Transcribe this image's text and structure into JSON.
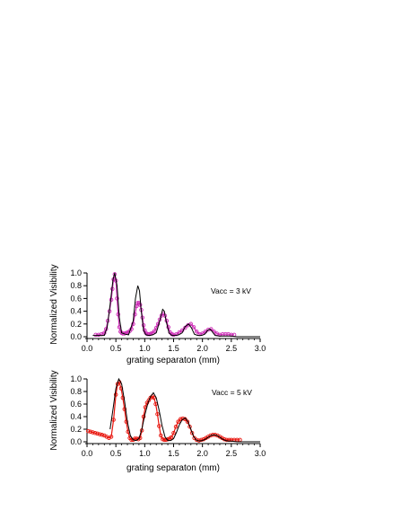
{
  "chart_data": [
    {
      "type": "line",
      "annotation": "Vacc = 3 kV",
      "xlabel": "grating separaton (mm)",
      "ylabel": "Normalized  Visibility",
      "xlim": [
        0.0,
        3.0
      ],
      "ylim": [
        0.0,
        1.0
      ],
      "xticks": [
        "0.0",
        "0.5",
        "1.0",
        "1.5",
        "2.0",
        "2.5",
        "3.0"
      ],
      "yticks": [
        "0.0",
        "0.2",
        "0.4",
        "0.6",
        "0.8",
        "1.0"
      ],
      "grid": false,
      "series": [
        {
          "role": "theory",
          "style": "line",
          "color": "#000000",
          "x": [
            0.1,
            0.3,
            0.35,
            0.4,
            0.45,
            0.48,
            0.52,
            0.56,
            0.6,
            0.66,
            0.72,
            0.8,
            0.84,
            0.88,
            0.91,
            0.94,
            0.98,
            1.02,
            1.08,
            1.14,
            1.2,
            1.26,
            1.31,
            1.34,
            1.37,
            1.42,
            1.47,
            1.53,
            1.59,
            1.65,
            1.7,
            1.76,
            1.81,
            1.86,
            1.92,
            1.98,
            2.04,
            2.09,
            2.13,
            2.17,
            2.22,
            2.3,
            2.4,
            2.5,
            2.6,
            3.0
          ],
          "y": [
            0.02,
            0.02,
            0.15,
            0.5,
            0.9,
            1.0,
            0.8,
            0.3,
            0.06,
            0.04,
            0.03,
            0.25,
            0.6,
            0.8,
            0.72,
            0.4,
            0.1,
            0.03,
            0.02,
            0.03,
            0.06,
            0.25,
            0.43,
            0.4,
            0.25,
            0.06,
            0.02,
            0.02,
            0.03,
            0.06,
            0.16,
            0.2,
            0.14,
            0.04,
            0.02,
            0.02,
            0.04,
            0.1,
            0.12,
            0.08,
            0.02,
            0.01,
            0.01,
            0.01,
            0.0,
            0.0
          ]
        },
        {
          "role": "experiment",
          "style": "markers-line",
          "color": "#cc2ab5",
          "x": [
            0.15,
            0.2,
            0.25,
            0.3,
            0.33,
            0.36,
            0.39,
            0.42,
            0.44,
            0.46,
            0.48,
            0.5,
            0.52,
            0.54,
            0.56,
            0.58,
            0.6,
            0.62,
            0.65,
            0.68,
            0.71,
            0.74,
            0.77,
            0.8,
            0.83,
            0.86,
            0.88,
            0.9,
            0.92,
            0.94,
            0.96,
            0.98,
            1.0,
            1.02,
            1.05,
            1.08,
            1.11,
            1.14,
            1.17,
            1.2,
            1.23,
            1.26,
            1.29,
            1.32,
            1.35,
            1.38,
            1.41,
            1.44,
            1.47,
            1.5,
            1.55,
            1.6,
            1.65,
            1.7,
            1.75,
            1.8,
            1.85,
            1.9,
            1.95,
            2.0,
            2.05,
            2.1,
            2.15,
            2.2,
            2.25,
            2.3,
            2.35,
            2.4,
            2.45,
            2.5,
            2.55
          ],
          "y": [
            0.03,
            0.03,
            0.04,
            0.06,
            0.12,
            0.25,
            0.4,
            0.58,
            0.75,
            0.9,
            0.98,
            0.88,
            0.6,
            0.35,
            0.15,
            0.08,
            0.06,
            0.05,
            0.05,
            0.06,
            0.07,
            0.09,
            0.12,
            0.2,
            0.35,
            0.48,
            0.53,
            0.53,
            0.5,
            0.42,
            0.3,
            0.18,
            0.1,
            0.06,
            0.04,
            0.04,
            0.05,
            0.06,
            0.09,
            0.14,
            0.2,
            0.27,
            0.33,
            0.36,
            0.33,
            0.25,
            0.15,
            0.07,
            0.04,
            0.03,
            0.04,
            0.07,
            0.1,
            0.14,
            0.18,
            0.2,
            0.15,
            0.08,
            0.04,
            0.05,
            0.08,
            0.11,
            0.12,
            0.08,
            0.05,
            0.03,
            0.04,
            0.04,
            0.04,
            0.03,
            0.03
          ]
        }
      ]
    },
    {
      "type": "line",
      "annotation": "Vacc = 5 kV",
      "xlabel": "grating separaton (mm)",
      "ylabel": "Normalized  Visibility",
      "xlim": [
        0.0,
        3.0
      ],
      "ylim": [
        0.0,
        1.0
      ],
      "xticks": [
        "0.0",
        "0.5",
        "1.0",
        "1.5",
        "2.0",
        "2.5",
        "3.0"
      ],
      "yticks": [
        "0.0",
        "0.2",
        "0.4",
        "0.6",
        "0.8",
        "1.0"
      ],
      "grid": false,
      "series": [
        {
          "role": "theory",
          "style": "line",
          "color": "#000000",
          "x": [
            0.4,
            0.45,
            0.5,
            0.55,
            0.6,
            0.65,
            0.7,
            0.75,
            0.8,
            0.85,
            0.9,
            0.95,
            1.0,
            1.05,
            1.1,
            1.15,
            1.2,
            1.25,
            1.3,
            1.35,
            1.4,
            1.45,
            1.5,
            1.55,
            1.6,
            1.65,
            1.7,
            1.75,
            1.8,
            1.85,
            1.9,
            1.95,
            2.0,
            2.05,
            2.1,
            2.15,
            2.2,
            2.25,
            2.3,
            2.35,
            2.4,
            2.45,
            2.5,
            2.6,
            2.8,
            3.0
          ],
          "y": [
            0.2,
            0.52,
            0.85,
            1.0,
            0.92,
            0.65,
            0.32,
            0.1,
            0.03,
            0.02,
            0.05,
            0.2,
            0.42,
            0.6,
            0.72,
            0.78,
            0.7,
            0.5,
            0.26,
            0.08,
            0.02,
            0.02,
            0.05,
            0.15,
            0.27,
            0.35,
            0.38,
            0.32,
            0.2,
            0.08,
            0.02,
            0.01,
            0.02,
            0.04,
            0.07,
            0.1,
            0.11,
            0.1,
            0.07,
            0.04,
            0.02,
            0.01,
            0.01,
            0.0,
            0.0,
            0.0
          ]
        },
        {
          "role": "experiment",
          "style": "markers-line",
          "color": "#e8140c",
          "x": [
            0.02,
            0.06,
            0.1,
            0.14,
            0.18,
            0.22,
            0.26,
            0.3,
            0.34,
            0.38,
            0.42,
            0.46,
            0.5,
            0.53,
            0.56,
            0.59,
            0.62,
            0.65,
            0.68,
            0.71,
            0.74,
            0.77,
            0.8,
            0.83,
            0.86,
            0.89,
            0.92,
            0.95,
            0.98,
            1.01,
            1.04,
            1.07,
            1.1,
            1.13,
            1.16,
            1.19,
            1.22,
            1.25,
            1.28,
            1.31,
            1.34,
            1.37,
            1.4,
            1.43,
            1.46,
            1.5,
            1.54,
            1.58,
            1.62,
            1.66,
            1.7,
            1.74,
            1.78,
            1.82,
            1.86,
            1.9,
            1.94,
            1.98,
            2.02,
            2.06,
            2.1,
            2.14,
            2.18,
            2.22,
            2.26,
            2.3,
            2.34,
            2.38,
            2.42,
            2.46,
            2.5,
            2.55,
            2.6,
            2.65
          ],
          "y": [
            0.17,
            0.16,
            0.15,
            0.14,
            0.13,
            0.12,
            0.11,
            0.1,
            0.08,
            0.06,
            0.08,
            0.35,
            0.75,
            0.92,
            0.95,
            0.85,
            0.7,
            0.52,
            0.32,
            0.16,
            0.06,
            0.03,
            0.03,
            0.05,
            0.05,
            0.04,
            0.06,
            0.18,
            0.4,
            0.55,
            0.62,
            0.66,
            0.7,
            0.72,
            0.7,
            0.6,
            0.44,
            0.25,
            0.1,
            0.04,
            0.03,
            0.03,
            0.04,
            0.05,
            0.07,
            0.14,
            0.24,
            0.32,
            0.36,
            0.37,
            0.36,
            0.32,
            0.24,
            0.14,
            0.06,
            0.03,
            0.02,
            0.03,
            0.04,
            0.06,
            0.08,
            0.1,
            0.11,
            0.11,
            0.1,
            0.08,
            0.06,
            0.04,
            0.03,
            0.03,
            0.03,
            0.03,
            0.03,
            0.03
          ]
        }
      ]
    }
  ]
}
